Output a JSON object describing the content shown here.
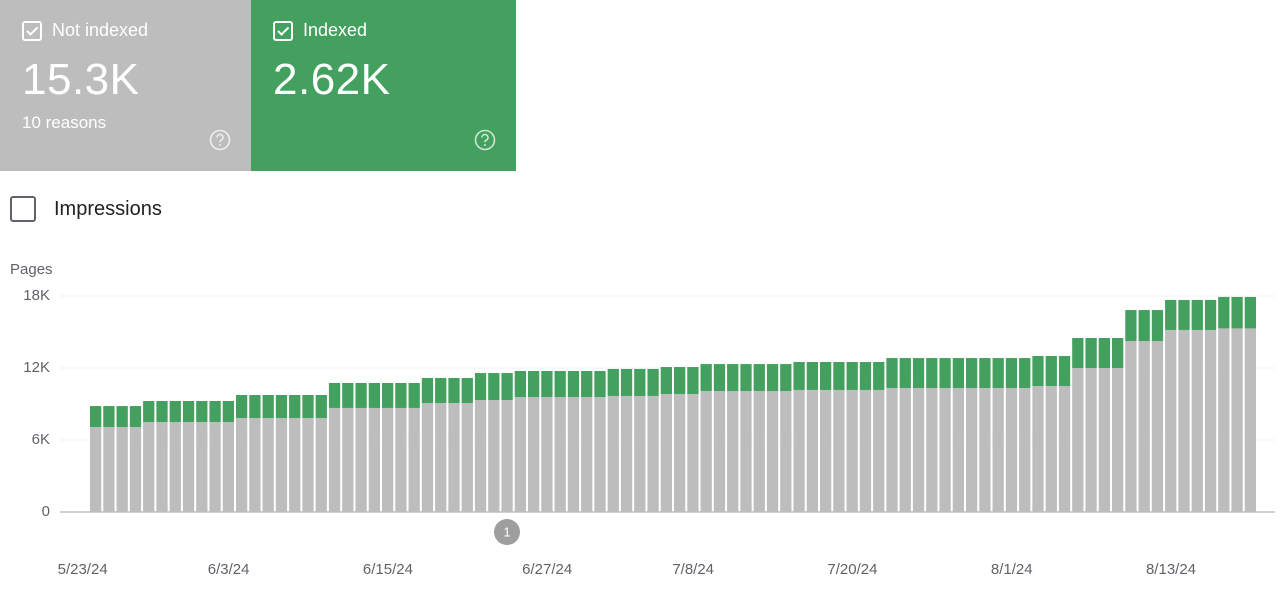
{
  "cards": [
    {
      "label": "Not indexed",
      "value": "15.3K",
      "sub": "10 reasons"
    },
    {
      "label": "Indexed",
      "value": "2.62K"
    }
  ],
  "toggle": "Impressions",
  "chart_data": {
    "type": "stacked-bar",
    "y_label": "Pages",
    "annotation": "1",
    "categories": [
      "5/23/24",
      null,
      null,
      null,
      null,
      null,
      null,
      null,
      null,
      null,
      null,
      "6/3/24",
      null,
      null,
      null,
      null,
      null,
      null,
      null,
      null,
      null,
      null,
      null,
      "6/15/24",
      null,
      null,
      null,
      null,
      null,
      null,
      null,
      null,
      null,
      null,
      null,
      "6/27/24",
      null,
      null,
      null,
      null,
      null,
      null,
      null,
      null,
      null,
      null,
      "7/8/24",
      null,
      null,
      null,
      null,
      null,
      null,
      null,
      null,
      null,
      null,
      null,
      "7/20/24",
      null,
      null,
      null,
      null,
      null,
      null,
      null,
      null,
      null,
      null,
      null,
      "8/1/24",
      null,
      null,
      null,
      null,
      null,
      null,
      null,
      null,
      null,
      null,
      null,
      "8/13/24",
      null,
      null,
      null,
      null,
      null
    ],
    "series": [
      {
        "name": "Not indexed",
        "color": "#bdbdbd",
        "values": [
          7080,
          7080,
          7080,
          7080,
          7500,
          7500,
          7500,
          7500,
          7500,
          7500,
          7500,
          7830,
          7830,
          7830,
          7830,
          7830,
          7830,
          7830,
          8670,
          8670,
          8670,
          8670,
          8670,
          8670,
          8670,
          9080,
          9080,
          9080,
          9080,
          9330,
          9330,
          9330,
          9580,
          9580,
          9580,
          9580,
          9580,
          9580,
          9580,
          9670,
          9670,
          9670,
          9670,
          9830,
          9830,
          9830,
          10080,
          10080,
          10080,
          10080,
          10080,
          10080,
          10080,
          10170,
          10170,
          10170,
          10170,
          10170,
          10170,
          10170,
          10330,
          10330,
          10330,
          10330,
          10330,
          10330,
          10330,
          10330,
          10330,
          10330,
          10330,
          10500,
          10500,
          10500,
          12000,
          12000,
          12000,
          12000,
          14250,
          14250,
          14250,
          15170,
          15170,
          15170,
          15170,
          15300,
          15300,
          15300
        ]
      },
      {
        "name": "Indexed",
        "color": "#43a05e",
        "values": [
          1750,
          1750,
          1750,
          1750,
          1750,
          1750,
          1750,
          1750,
          1750,
          1750,
          1750,
          1920,
          1920,
          1920,
          1920,
          1920,
          1920,
          1920,
          2080,
          2080,
          2080,
          2080,
          2080,
          2080,
          2080,
          2090,
          2090,
          2090,
          2090,
          2250,
          2250,
          2250,
          2170,
          2170,
          2170,
          2170,
          2170,
          2170,
          2170,
          2250,
          2250,
          2250,
          2250,
          2250,
          2250,
          2250,
          2250,
          2250,
          2250,
          2250,
          2250,
          2250,
          2250,
          2330,
          2330,
          2330,
          2330,
          2330,
          2330,
          2330,
          2500,
          2500,
          2500,
          2500,
          2500,
          2500,
          2500,
          2500,
          2500,
          2500,
          2500,
          2500,
          2500,
          2500,
          2500,
          2500,
          2500,
          2500,
          2580,
          2580,
          2580,
          2500,
          2500,
          2500,
          2500,
          2620,
          2620,
          2620
        ]
      }
    ],
    "ylim": [
      0,
      18000
    ],
    "yticks": [
      0,
      {
        "value": 6000,
        "label": "6K"
      },
      {
        "value": 12000,
        "label": "12K"
      },
      {
        "value": 18000,
        "label": "18K"
      }
    ],
    "grid": true
  }
}
